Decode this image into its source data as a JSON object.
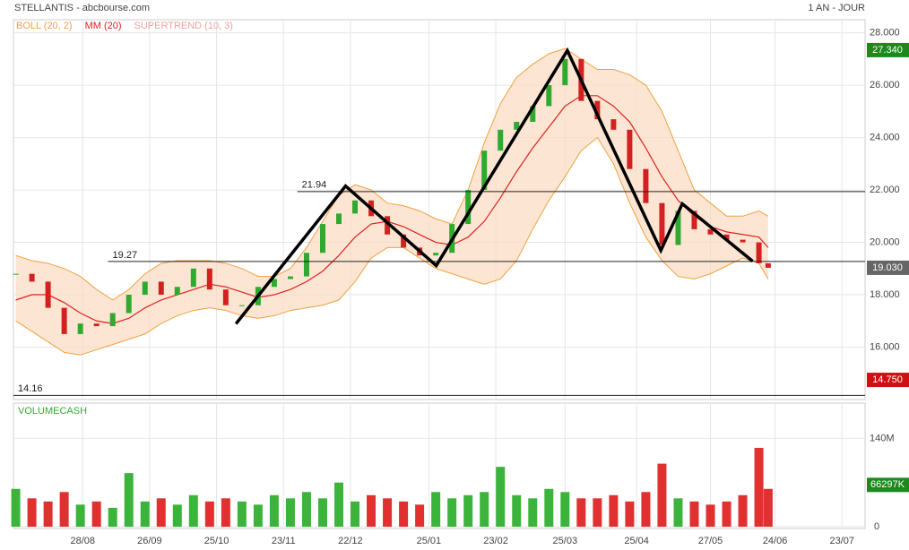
{
  "chart_data": {
    "type": "candlestick",
    "title": "STELLANTIS - abcbourse.com",
    "period": "1 AN - JOUR",
    "legend": [
      {
        "name": "BOLL (20, 2)",
        "color": "#f0a040"
      },
      {
        "name": "MM (20)",
        "color": "#e02020"
      },
      {
        "name": "SUPERTREND (10, 3)",
        "color": "#f4a0a0"
      }
    ],
    "x": [
      0,
      7,
      14,
      21,
      28,
      35,
      42,
      49,
      56,
      63,
      70,
      77,
      84,
      91,
      98,
      105,
      112,
      119,
      126,
      133,
      140,
      147,
      154,
      161,
      168,
      175,
      182,
      189,
      196,
      203,
      210,
      217,
      224,
      231,
      238,
      245,
      252,
      259,
      266,
      273,
      280,
      287,
      294,
      301,
      308,
      315,
      322,
      326
    ],
    "close": [
      18.8,
      18.5,
      17.5,
      16.5,
      16.9,
      16.8,
      17.3,
      18.0,
      18.5,
      18.0,
      18.3,
      19.0,
      18.2,
      17.6,
      17.6,
      18.3,
      18.6,
      18.7,
      19.6,
      20.7,
      21.1,
      21.6,
      21.0,
      20.3,
      19.8,
      19.5,
      19.6,
      20.7,
      22.0,
      23.5,
      24.3,
      24.6,
      25.2,
      26.0,
      27.0,
      25.4,
      24.7,
      24.3,
      22.8,
      21.5,
      19.9,
      21.2,
      20.5,
      20.3,
      20.1,
      20.0,
      19.2,
      19.03
    ],
    "mm": [
      17.8,
      18.0,
      18.0,
      17.7,
      17.3,
      17.0,
      16.9,
      17.1,
      17.5,
      17.8,
      18.0,
      18.2,
      18.4,
      18.3,
      18.1,
      17.9,
      18.0,
      18.2,
      18.5,
      18.9,
      19.5,
      20.2,
      20.7,
      20.8,
      20.6,
      20.3,
      20.0,
      19.9,
      20.2,
      20.8,
      21.7,
      22.7,
      23.6,
      24.4,
      25.2,
      25.6,
      25.6,
      25.2,
      24.6,
      23.6,
      22.5,
      21.6,
      21.0,
      20.6,
      20.4,
      20.3,
      20.2,
      19.8
    ],
    "boll_upper": [
      19.5,
      19.3,
      19.2,
      19.0,
      18.7,
      18.2,
      17.8,
      18.2,
      18.8,
      19.2,
      19.3,
      19.3,
      19.3,
      19.2,
      19.0,
      18.7,
      18.7,
      19.0,
      19.8,
      20.8,
      21.8,
      22.2,
      22.0,
      21.5,
      21.4,
      21.2,
      20.9,
      20.7,
      22.0,
      23.8,
      25.3,
      26.3,
      26.8,
      27.2,
      27.4,
      27.0,
      26.6,
      26.6,
      26.4,
      26.0,
      25.0,
      23.5,
      22.0,
      21.5,
      21.0,
      21.0,
      21.2,
      21.0
    ],
    "boll_lower": [
      17.0,
      16.6,
      16.2,
      15.8,
      15.7,
      15.9,
      16.1,
      16.3,
      16.5,
      16.9,
      17.2,
      17.4,
      17.5,
      17.4,
      17.2,
      17.1,
      17.2,
      17.4,
      17.5,
      17.6,
      17.8,
      18.5,
      19.4,
      19.8,
      19.8,
      19.4,
      19.0,
      18.8,
      18.6,
      18.4,
      18.6,
      19.3,
      20.5,
      21.6,
      22.5,
      23.5,
      24.0,
      23.0,
      21.5,
      20.2,
      19.3,
      18.7,
      18.6,
      18.8,
      19.1,
      19.4,
      19.2,
      18.6
    ],
    "volume_label": "VOLUMECASH",
    "volume": [
      60,
      45,
      40,
      55,
      35,
      40,
      30,
      85,
      40,
      45,
      35,
      50,
      40,
      45,
      40,
      35,
      50,
      45,
      55,
      45,
      70,
      40,
      50,
      45,
      40,
      35,
      55,
      45,
      50,
      55,
      95,
      50,
      45,
      60,
      55,
      45,
      45,
      50,
      40,
      55,
      100,
      45,
      40,
      35,
      40,
      50,
      125,
      60
    ],
    "xlim": [
      -1,
      368
    ],
    "xticks": [
      {
        "value": 29,
        "label": "28/08"
      },
      {
        "value": 58,
        "label": "26/09"
      },
      {
        "value": 87,
        "label": "25/10"
      },
      {
        "value": 116,
        "label": "23/11"
      },
      {
        "value": 145,
        "label": "22/12"
      },
      {
        "value": 179,
        "label": "25/01"
      },
      {
        "value": 208,
        "label": "23/02"
      },
      {
        "value": 238,
        "label": "25/03"
      },
      {
        "value": 269,
        "label": "25/04"
      },
      {
        "value": 301,
        "label": "27/05"
      },
      {
        "value": 329,
        "label": "24/06"
      },
      {
        "value": 358,
        "label": "23/07"
      }
    ],
    "ylim": [
      14.0,
      28.5
    ],
    "yticks": [
      {
        "value": 16,
        "label": "16.000"
      },
      {
        "value": 18,
        "label": "18.000"
      },
      {
        "value": 20,
        "label": "20.000"
      },
      {
        "value": 22,
        "label": "22.000"
      },
      {
        "value": 24,
        "label": "24.000"
      },
      {
        "value": 26,
        "label": "26.000"
      },
      {
        "value": 28,
        "label": "28.000"
      }
    ],
    "y2lim": [
      0,
      196
    ],
    "y2ticks": [
      0,
      {
        "value": 140,
        "label": "140M"
      }
    ],
    "badges": [
      {
        "value": 27.34,
        "label": "27.340",
        "color": "#1a8a1a"
      },
      {
        "value": 19.03,
        "label": "19.030",
        "color": "#666666"
      },
      {
        "value": 14.75,
        "label": "14.750",
        "color": "#d01010"
      }
    ],
    "volume_badge": {
      "value": 66.297,
      "label": "66297K",
      "color": "#1a8a1a"
    },
    "levels": [
      {
        "value": 21.94,
        "start": 122
      },
      {
        "value": 19.27,
        "start": 40
      },
      {
        "value": 14.16,
        "start": -1
      }
    ],
    "trendline": {
      "x": [
        95.4,
        142.9,
        182.2,
        239,
        279.5,
        288.8,
        319.3
      ],
      "y": [
        16.89,
        22.15,
        19.11,
        27.32,
        19.69,
        21.47,
        19.28
      ]
    },
    "grid": true
  }
}
